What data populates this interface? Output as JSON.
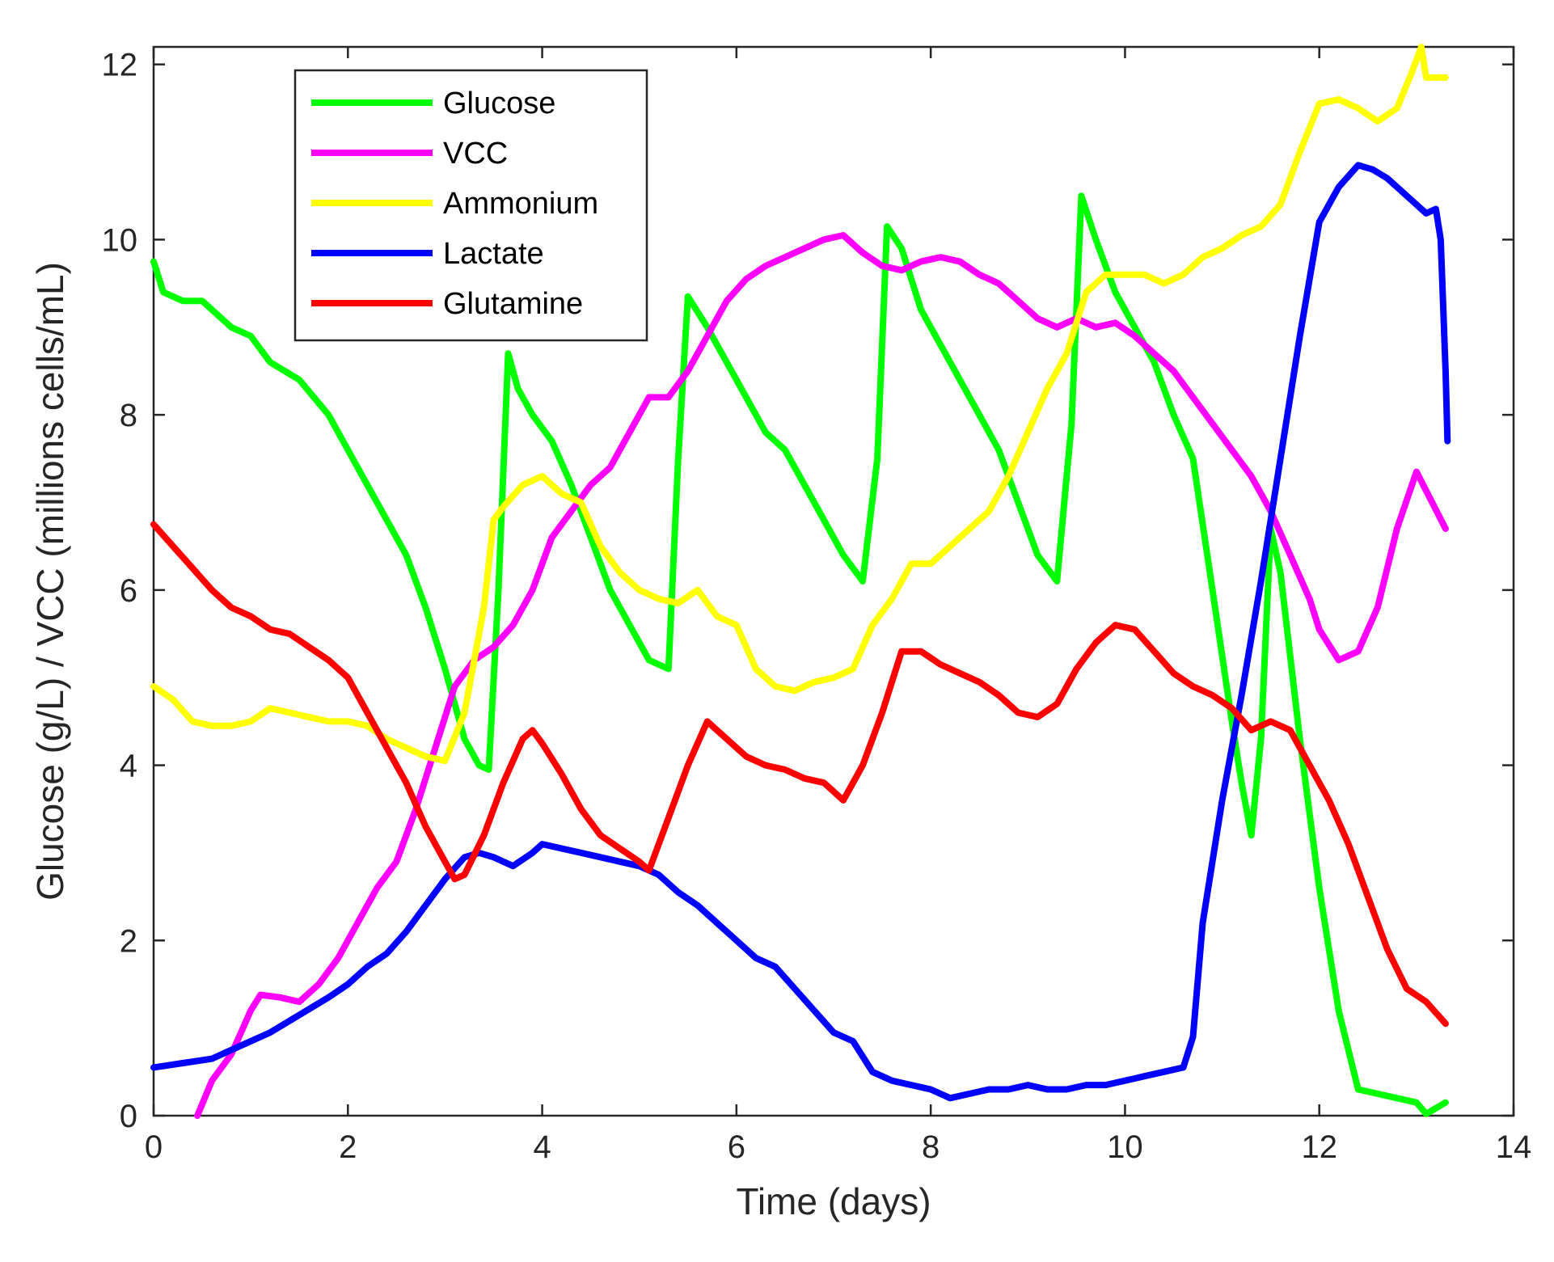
{
  "chart_data": {
    "type": "line",
    "title": "",
    "xlabel": "Time (days)",
    "ylabel": "Glucose (g/L) / VCC (millions cells/mL)",
    "xlim": [
      0,
      14
    ],
    "ylim": [
      0,
      12.2
    ],
    "xticks": [
      0,
      2,
      4,
      6,
      8,
      10,
      12,
      14
    ],
    "yticks": [
      0,
      2,
      4,
      6,
      8,
      10,
      12
    ],
    "xtick_labels": [
      "0",
      "2",
      "4",
      "6",
      "8",
      "10",
      "12",
      "14"
    ],
    "ytick_labels": [
      "0",
      "2",
      "4",
      "6",
      "8",
      "10",
      "12"
    ],
    "grid": false,
    "legend_position": "top-left",
    "series": [
      {
        "name": "Glucose",
        "color": "#00ff00",
        "x": [
          0,
          0.1,
          0.3,
          0.5,
          0.8,
          1.0,
          1.2,
          1.5,
          1.8,
          2.0,
          2.2,
          2.4,
          2.6,
          2.8,
          3.0,
          3.2,
          3.35,
          3.45,
          3.55,
          3.65,
          3.75,
          3.9,
          4.1,
          4.3,
          4.5,
          4.7,
          4.9,
          5.1,
          5.3,
          5.4,
          5.5,
          5.7,
          5.9,
          6.1,
          6.3,
          6.5,
          6.7,
          6.9,
          7.1,
          7.3,
          7.45,
          7.55,
          7.7,
          7.9,
          8.1,
          8.3,
          8.5,
          8.7,
          8.9,
          9.1,
          9.3,
          9.45,
          9.55,
          9.7,
          9.9,
          10.1,
          10.3,
          10.5,
          10.7,
          10.9,
          11.1,
          11.2,
          11.3,
          11.4,
          11.5,
          11.6,
          11.8,
          12.0,
          12.2,
          12.4,
          12.6,
          12.8,
          13.0,
          13.1,
          13.3
        ],
        "values": [
          9.75,
          9.4,
          9.3,
          9.3,
          9.0,
          8.9,
          8.6,
          8.4,
          8.0,
          7.6,
          7.2,
          6.8,
          6.4,
          5.8,
          5.1,
          4.3,
          4.0,
          3.95,
          6.0,
          8.7,
          8.3,
          8.0,
          7.7,
          7.2,
          6.6,
          6.0,
          5.6,
          5.2,
          5.1,
          7.5,
          9.35,
          9.0,
          8.6,
          8.2,
          7.8,
          7.6,
          7.2,
          6.8,
          6.4,
          6.1,
          7.5,
          10.15,
          9.9,
          9.2,
          8.8,
          8.4,
          8.0,
          7.6,
          7.0,
          6.4,
          6.1,
          7.9,
          10.5,
          10.0,
          9.4,
          9.0,
          8.6,
          8.0,
          7.5,
          6.0,
          4.5,
          3.8,
          3.2,
          4.3,
          6.7,
          6.2,
          4.3,
          2.6,
          1.2,
          0.3,
          0.25,
          0.2,
          0.15,
          0.02,
          0.15
        ]
      },
      {
        "name": "VCC",
        "color": "#ff00ff",
        "x": [
          0.45,
          0.6,
          0.8,
          1.0,
          1.1,
          1.3,
          1.5,
          1.7,
          1.9,
          2.1,
          2.3,
          2.5,
          2.7,
          2.9,
          3.1,
          3.3,
          3.5,
          3.7,
          3.9,
          4.1,
          4.3,
          4.5,
          4.7,
          4.9,
          5.1,
          5.3,
          5.5,
          5.7,
          5.9,
          6.1,
          6.3,
          6.5,
          6.7,
          6.9,
          7.1,
          7.3,
          7.5,
          7.7,
          7.9,
          8.1,
          8.3,
          8.5,
          8.7,
          8.9,
          9.1,
          9.3,
          9.5,
          9.7,
          9.9,
          10.1,
          10.3,
          10.5,
          10.7,
          10.9,
          11.1,
          11.3,
          11.5,
          11.7,
          11.9,
          12.0,
          12.2,
          12.4,
          12.6,
          12.8,
          13.0,
          13.3
        ],
        "values": [
          0.0,
          0.4,
          0.7,
          1.2,
          1.38,
          1.35,
          1.3,
          1.5,
          1.8,
          2.2,
          2.6,
          2.9,
          3.5,
          4.2,
          4.9,
          5.2,
          5.35,
          5.6,
          6.0,
          6.6,
          6.9,
          7.2,
          7.4,
          7.8,
          8.2,
          8.2,
          8.5,
          8.9,
          9.3,
          9.55,
          9.7,
          9.8,
          9.9,
          10.0,
          10.05,
          9.85,
          9.7,
          9.65,
          9.75,
          9.8,
          9.75,
          9.6,
          9.5,
          9.3,
          9.1,
          9.0,
          9.1,
          9.0,
          9.05,
          8.9,
          8.7,
          8.5,
          8.2,
          7.9,
          7.6,
          7.3,
          6.9,
          6.4,
          5.9,
          5.55,
          5.2,
          5.3,
          5.8,
          6.7,
          7.35,
          6.7
        ]
      },
      {
        "name": "Ammonium",
        "color": "#ffff00",
        "x": [
          0,
          0.2,
          0.4,
          0.6,
          0.8,
          1.0,
          1.2,
          1.4,
          1.6,
          1.8,
          2.0,
          2.2,
          2.4,
          2.6,
          2.8,
          3.0,
          3.2,
          3.4,
          3.5,
          3.6,
          3.8,
          4.0,
          4.2,
          4.4,
          4.6,
          4.8,
          5.0,
          5.2,
          5.4,
          5.6,
          5.8,
          6.0,
          6.2,
          6.4,
          6.6,
          6.8,
          7.0,
          7.2,
          7.4,
          7.6,
          7.8,
          8.0,
          8.2,
          8.4,
          8.6,
          8.8,
          9.0,
          9.2,
          9.4,
          9.6,
          9.8,
          10.0,
          10.2,
          10.4,
          10.6,
          10.8,
          11.0,
          11.2,
          11.4,
          11.6,
          11.8,
          12.0,
          12.2,
          12.4,
          12.6,
          12.8,
          12.95,
          13.05,
          13.1,
          13.3
        ],
        "values": [
          4.9,
          4.75,
          4.5,
          4.45,
          4.45,
          4.5,
          4.65,
          4.6,
          4.55,
          4.5,
          4.5,
          4.45,
          4.3,
          4.2,
          4.1,
          4.05,
          4.6,
          5.8,
          6.8,
          6.95,
          7.2,
          7.3,
          7.1,
          7.0,
          6.5,
          6.2,
          6.0,
          5.9,
          5.85,
          6.0,
          5.7,
          5.6,
          5.1,
          4.9,
          4.85,
          4.95,
          5.0,
          5.1,
          5.6,
          5.9,
          6.3,
          6.3,
          6.5,
          6.7,
          6.9,
          7.3,
          7.8,
          8.3,
          8.7,
          9.4,
          9.6,
          9.6,
          9.6,
          9.5,
          9.6,
          9.8,
          9.9,
          10.05,
          10.15,
          10.4,
          11.0,
          11.55,
          11.6,
          11.5,
          11.35,
          11.5,
          11.9,
          12.2,
          11.85,
          11.85
        ]
      },
      {
        "name": "Lactate",
        "color": "#0000ff",
        "x": [
          0,
          0.3,
          0.6,
          0.9,
          1.2,
          1.5,
          1.8,
          2.0,
          2.2,
          2.4,
          2.6,
          2.8,
          3.0,
          3.2,
          3.35,
          3.5,
          3.7,
          3.9,
          4.0,
          4.2,
          4.4,
          4.6,
          4.8,
          5.0,
          5.2,
          5.4,
          5.6,
          5.8,
          6.0,
          6.2,
          6.4,
          6.6,
          6.8,
          7.0,
          7.2,
          7.4,
          7.6,
          7.8,
          8.0,
          8.2,
          8.4,
          8.6,
          8.8,
          9.0,
          9.2,
          9.4,
          9.6,
          9.8,
          10.0,
          10.2,
          10.4,
          10.6,
          10.7,
          10.8,
          11.0,
          11.2,
          11.4,
          11.6,
          11.8,
          12.0,
          12.2,
          12.4,
          12.55,
          12.7,
          12.9,
          13.1,
          13.2,
          13.25,
          13.3,
          13.32
        ],
        "values": [
          0.55,
          0.6,
          0.65,
          0.8,
          0.95,
          1.15,
          1.35,
          1.5,
          1.7,
          1.85,
          2.1,
          2.4,
          2.7,
          2.95,
          3.0,
          2.95,
          2.85,
          3.0,
          3.1,
          3.05,
          3.0,
          2.95,
          2.9,
          2.85,
          2.75,
          2.55,
          2.4,
          2.2,
          2.0,
          1.8,
          1.7,
          1.45,
          1.2,
          0.95,
          0.85,
          0.5,
          0.4,
          0.35,
          0.3,
          0.2,
          0.25,
          0.3,
          0.3,
          0.35,
          0.3,
          0.3,
          0.35,
          0.35,
          0.4,
          0.45,
          0.5,
          0.55,
          0.9,
          2.2,
          3.6,
          4.8,
          6.1,
          7.5,
          8.9,
          10.2,
          10.6,
          10.85,
          10.8,
          10.7,
          10.5,
          10.3,
          10.35,
          10.0,
          8.5,
          7.7
        ]
      },
      {
        "name": "Glutamine",
        "color": "#ff0000",
        "x": [
          0,
          0.2,
          0.4,
          0.6,
          0.8,
          1.0,
          1.2,
          1.4,
          1.6,
          1.8,
          2.0,
          2.2,
          2.4,
          2.6,
          2.8,
          3.0,
          3.1,
          3.2,
          3.4,
          3.6,
          3.8,
          3.9,
          4.0,
          4.2,
          4.4,
          4.6,
          4.8,
          5.0,
          5.1,
          5.3,
          5.5,
          5.7,
          5.9,
          6.1,
          6.3,
          6.5,
          6.7,
          6.9,
          7.1,
          7.3,
          7.5,
          7.7,
          7.9,
          8.1,
          8.3,
          8.5,
          8.7,
          8.9,
          9.1,
          9.3,
          9.5,
          9.7,
          9.9,
          10.1,
          10.3,
          10.5,
          10.7,
          10.9,
          11.1,
          11.3,
          11.5,
          11.7,
          11.9,
          12.1,
          12.3,
          12.5,
          12.7,
          12.9,
          13.1,
          13.3
        ],
        "values": [
          6.75,
          6.5,
          6.25,
          6.0,
          5.8,
          5.7,
          5.55,
          5.5,
          5.35,
          5.2,
          5.0,
          4.6,
          4.2,
          3.8,
          3.3,
          2.9,
          2.7,
          2.75,
          3.2,
          3.8,
          4.3,
          4.4,
          4.25,
          3.9,
          3.5,
          3.2,
          3.05,
          2.9,
          2.8,
          3.4,
          4.0,
          4.5,
          4.3,
          4.1,
          4.0,
          3.95,
          3.85,
          3.8,
          3.6,
          4.0,
          4.6,
          5.3,
          5.3,
          5.15,
          5.05,
          4.95,
          4.8,
          4.6,
          4.55,
          4.7,
          5.1,
          5.4,
          5.6,
          5.55,
          5.3,
          5.05,
          4.9,
          4.8,
          4.65,
          4.4,
          4.5,
          4.4,
          4.0,
          3.6,
          3.1,
          2.5,
          1.9,
          1.45,
          1.3,
          1.05
        ]
      }
    ]
  }
}
